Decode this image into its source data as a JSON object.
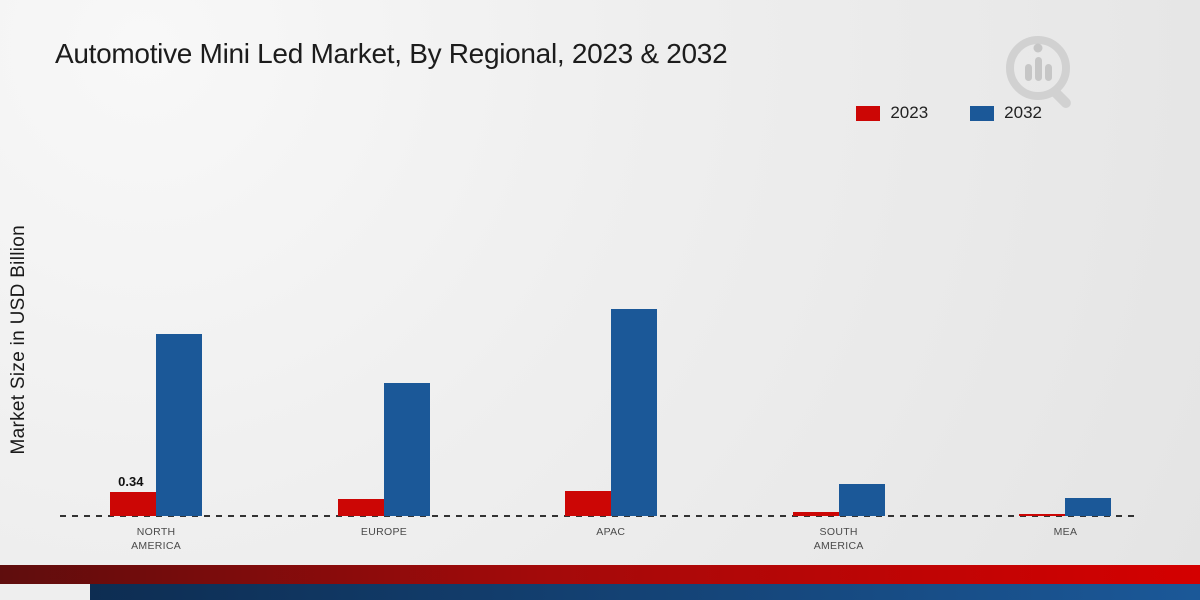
{
  "title": "Automotive Mini Led Market, By Regional, 2023 & 2032",
  "y_axis_label": "Market Size in USD Billion",
  "legend": {
    "items": [
      {
        "label": "2023",
        "color": "#cc0605"
      },
      {
        "label": "2032",
        "color": "#1b5898"
      }
    ]
  },
  "colors": {
    "bar_2023": "#cc0605",
    "bar_2032": "#1b5898",
    "baseline": "#333333",
    "footer_red_gradient": [
      "#5f0d0d",
      "#d40000"
    ],
    "footer_blue_gradient": [
      "#0d2d52",
      "#1b5898"
    ],
    "background": "#ececec"
  },
  "logo": {
    "name": "market-research-magnifier-logo"
  },
  "chart_data": {
    "type": "bar",
    "title": "Automotive Mini Led Market, By Regional, 2023 & 2032",
    "xlabel": "",
    "ylabel": "Market Size in USD Billion",
    "categories": [
      "NORTH AMERICA",
      "EUROPE",
      "APAC",
      "SOUTH AMERICA",
      "MEA"
    ],
    "series": [
      {
        "name": "2023",
        "color": "#cc0605",
        "values": [
          0.34,
          0.24,
          0.36,
          0.05,
          0.02
        ]
      },
      {
        "name": "2032",
        "color": "#1b5898",
        "values": [
          2.6,
          1.9,
          2.95,
          0.45,
          0.25
        ]
      }
    ],
    "annotations": [
      {
        "series": "2023",
        "category_index": 0,
        "text": "0.34"
      }
    ],
    "ylim": [
      0,
      3.2
    ],
    "grid": false,
    "axis_line": "dashed-baseline-only",
    "legend_position": "top-right"
  }
}
